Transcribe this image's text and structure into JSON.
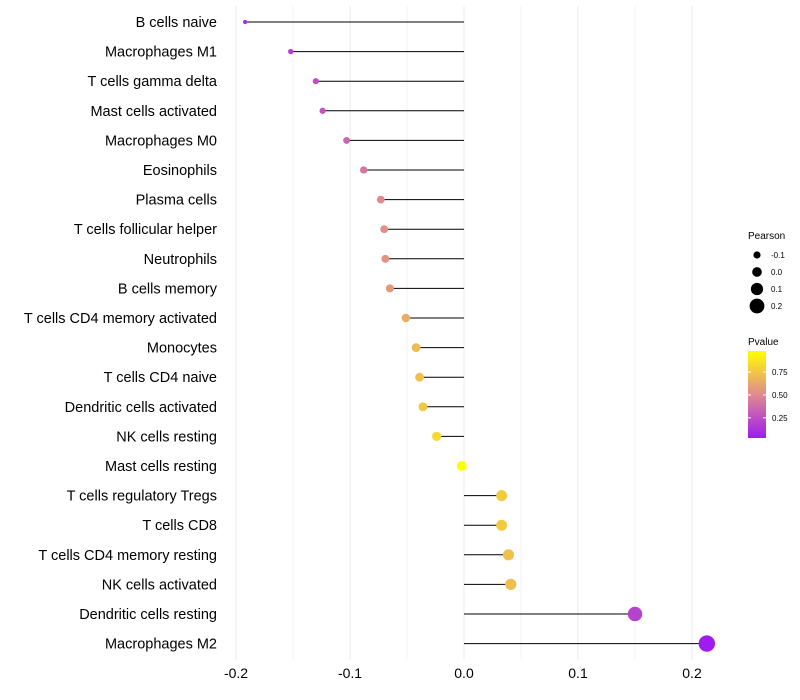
{
  "chart_data": {
    "type": "lollipop",
    "title": "",
    "xlabel": "",
    "ylabel": "",
    "xlim": [
      -0.2,
      0.22
    ],
    "x_ticks": [
      -0.2,
      -0.1,
      0.0,
      0.1,
      0.2
    ],
    "x_tick_labels": [
      "-0.2",
      "-0.1",
      "0.0",
      "0.1",
      "0.2"
    ],
    "grid": true,
    "points": [
      {
        "label": "B cells naive",
        "value": -0.192,
        "pvalue": 0.1
      },
      {
        "label": "Macrophages M1",
        "value": -0.152,
        "pvalue": 0.2
      },
      {
        "label": "T cells gamma delta",
        "value": -0.13,
        "pvalue": 0.25
      },
      {
        "label": "Mast cells activated",
        "value": -0.124,
        "pvalue": 0.28
      },
      {
        "label": "Macrophages M0",
        "value": -0.103,
        "pvalue": 0.35
      },
      {
        "label": "Eosinophils",
        "value": -0.088,
        "pvalue": 0.42
      },
      {
        "label": "Plasma cells",
        "value": -0.073,
        "pvalue": 0.5
      },
      {
        "label": "T cells follicular helper",
        "value": -0.07,
        "pvalue": 0.53
      },
      {
        "label": "Neutrophils",
        "value": -0.069,
        "pvalue": 0.54
      },
      {
        "label": "B cells memory",
        "value": -0.065,
        "pvalue": 0.56
      },
      {
        "label": "T cells CD4 memory activated",
        "value": -0.051,
        "pvalue": 0.65
      },
      {
        "label": "Monocytes",
        "value": -0.042,
        "pvalue": 0.71
      },
      {
        "label": "T cells CD4 naive",
        "value": -0.039,
        "pvalue": 0.73
      },
      {
        "label": "Dendritic cells activated",
        "value": -0.036,
        "pvalue": 0.75
      },
      {
        "label": "NK cells resting",
        "value": -0.024,
        "pvalue": 0.83
      },
      {
        "label": "Mast cells resting",
        "value": -0.002,
        "pvalue": 0.98
      },
      {
        "label": "T cells regulatory  Tregs ",
        "value": 0.033,
        "pvalue": 0.77
      },
      {
        "label": "T cells CD8",
        "value": 0.033,
        "pvalue": 0.77
      },
      {
        "label": "T cells CD4 memory resting",
        "value": 0.039,
        "pvalue": 0.73
      },
      {
        "label": "NK cells activated",
        "value": 0.041,
        "pvalue": 0.72
      },
      {
        "label": "Dendritic cells resting",
        "value": 0.15,
        "pvalue": 0.2
      },
      {
        "label": "Macrophages M2",
        "value": 0.213,
        "pvalue": 0.03
      }
    ],
    "legend_size": {
      "title": "Pearson",
      "entries": [
        {
          "label": "-0.1",
          "value": -0.1
        },
        {
          "label": "0.0",
          "value": 0.0
        },
        {
          "label": "0.1",
          "value": 0.1
        },
        {
          "label": "0.2",
          "value": 0.2
        }
      ]
    },
    "legend_color": {
      "title": "Pvalue",
      "ticks": [
        "0.75",
        "0.50",
        "0.25"
      ],
      "tick_values": [
        0.75,
        0.5,
        0.25
      ],
      "range": [
        0.03,
        0.98
      ],
      "low_color": "#9E1CF0",
      "mid_color": "#E08A8F",
      "high_color": "#FFFF00"
    },
    "colors": {
      "stem": "#000000",
      "grid": "#EBEBEB",
      "legend_swatch": "#000000"
    }
  }
}
